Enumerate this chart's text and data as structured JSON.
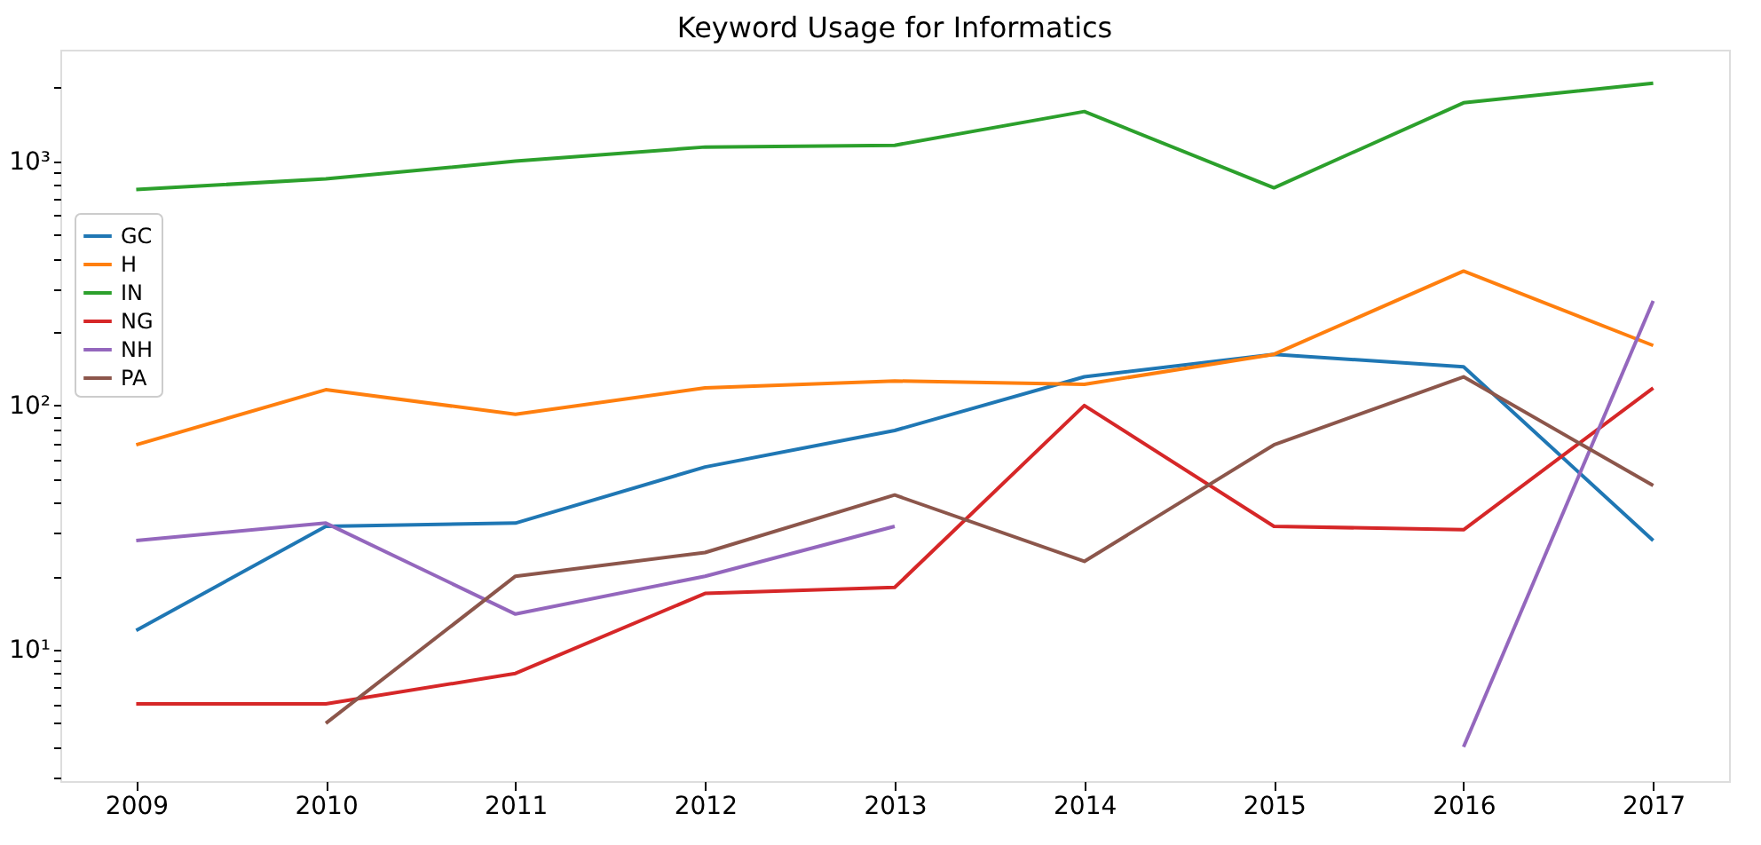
{
  "chart_data": {
    "type": "line",
    "title": "Keyword Usage for Informatics",
    "x": [
      2009,
      2010,
      2011,
      2012,
      2013,
      2014,
      2015,
      2016,
      2017
    ],
    "series": [
      {
        "name": "GC",
        "color": "#1f77b4",
        "values": [
          12,
          32,
          33,
          56,
          79,
          131,
          162,
          144,
          28
        ]
      },
      {
        "name": "H",
        "color": "#ff7f0e",
        "values": [
          69,
          116,
          92,
          118,
          126,
          122,
          162,
          355,
          176
        ]
      },
      {
        "name": "IN",
        "color": "#2ca02c",
        "values": [
          766,
          846,
          1000,
          1143,
          1162,
          1597,
          778,
          1734,
          2084
        ]
      },
      {
        "name": "NG",
        "color": "#d62728",
        "values": [
          6,
          6,
          8,
          17,
          18,
          100,
          32,
          31,
          118
        ]
      },
      {
        "name": "NH",
        "color": "#9467bd",
        "values": [
          28,
          33,
          14,
          20,
          32,
          null,
          null,
          4,
          268
        ]
      },
      {
        "name": "PA",
        "color": "#8c564b",
        "values": [
          null,
          5,
          20,
          25,
          43,
          23,
          69,
          131,
          47
        ]
      }
    ],
    "log": "y",
    "xlim": [
      2008.6,
      2017.4
    ],
    "xticks": [
      2009,
      2010,
      2011,
      2012,
      2013,
      2014,
      2015,
      2016,
      2017
    ],
    "ylim": [
      2.9,
      2860
    ],
    "yticks": [
      {
        "value": 3,
        "label": null
      },
      {
        "value": 4,
        "label": null
      },
      {
        "value": 5,
        "label": null
      },
      {
        "value": 6,
        "label": null
      },
      {
        "value": 7,
        "label": null
      },
      {
        "value": 8,
        "label": null
      },
      {
        "value": 9,
        "label": null
      },
      {
        "value": 10,
        "label": "10¹"
      },
      {
        "value": 20,
        "label": null
      },
      {
        "value": 30,
        "label": null
      },
      {
        "value": 40,
        "label": null
      },
      {
        "value": 50,
        "label": null
      },
      {
        "value": 60,
        "label": null
      },
      {
        "value": 70,
        "label": null
      },
      {
        "value": 80,
        "label": null
      },
      {
        "value": 90,
        "label": null
      },
      {
        "value": 100,
        "label": "10²"
      },
      {
        "value": 200,
        "label": null
      },
      {
        "value": 300,
        "label": null
      },
      {
        "value": 400,
        "label": null
      },
      {
        "value": 500,
        "label": null
      },
      {
        "value": 600,
        "label": null
      },
      {
        "value": 700,
        "label": null
      },
      {
        "value": 800,
        "label": null
      },
      {
        "value": 900,
        "label": null
      },
      {
        "value": 1000,
        "label": "10³"
      },
      {
        "value": 2000,
        "label": null
      }
    ],
    "grid": false,
    "legend": "top left",
    "marker": "none",
    "line_style": "solid"
  }
}
